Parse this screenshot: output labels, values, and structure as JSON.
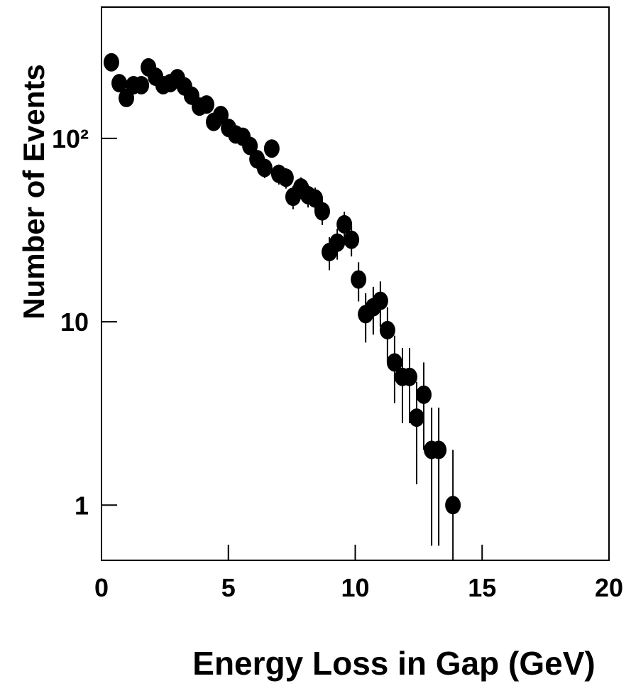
{
  "chart_data": {
    "type": "scatter",
    "x_label": "Energy Loss in Gap (GeV)",
    "y_label": "Number of Events",
    "log_y": true,
    "color": "#000000",
    "xlim": [
      0,
      20
    ],
    "ylim": [
      0.5,
      520
    ],
    "xticks": [
      0,
      5,
      10,
      15,
      20
    ],
    "yticks": [
      1,
      10,
      {
        "value": 100,
        "label": "10²"
      }
    ],
    "x": [
      0.39,
      0.7,
      0.98,
      1.26,
      1.57,
      1.85,
      2.13,
      2.43,
      2.71,
      2.99,
      3.27,
      3.55,
      3.86,
      4.14,
      4.42,
      4.7,
      5.01,
      5.29,
      5.57,
      5.85,
      6.13,
      6.43,
      6.71,
      6.99,
      7.27,
      7.55,
      7.86,
      8.14,
      8.42,
      8.7,
      8.98,
      9.29,
      9.57,
      9.85,
      10.13,
      10.41,
      10.71,
      10.99,
      11.27,
      11.55,
      11.86,
      12.14,
      12.42,
      12.7,
      13.01,
      13.29,
      13.85
    ],
    "values": [
      260,
      200,
      166,
      195,
      195,
      244,
      217,
      195,
      200,
      213,
      192,
      171,
      149,
      153,
      123,
      134,
      114,
      105,
      102,
      91,
      77,
      69,
      88,
      64,
      61,
      48,
      54,
      49,
      47,
      40,
      24,
      27,
      34,
      28,
      17,
      11,
      12,
      13,
      9,
      6,
      5,
      5,
      3,
      4,
      2,
      2,
      1
    ],
    "errors": [
      16.1,
      14.1,
      12.9,
      14.0,
      14.0,
      15.6,
      14.7,
      14.0,
      14.1,
      14.6,
      13.9,
      13.1,
      12.2,
      12.4,
      11.1,
      11.6,
      10.7,
      10.2,
      10.1,
      9.5,
      8.8,
      8.3,
      9.4,
      8.0,
      7.8,
      6.9,
      7.3,
      7.0,
      6.9,
      6.3,
      4.9,
      5.2,
      5.8,
      5.3,
      4.1,
      3.3,
      3.5,
      3.6,
      3.0,
      2.4,
      2.2,
      2.2,
      1.7,
      2.0,
      1.4,
      1.4,
      1.0
    ]
  }
}
